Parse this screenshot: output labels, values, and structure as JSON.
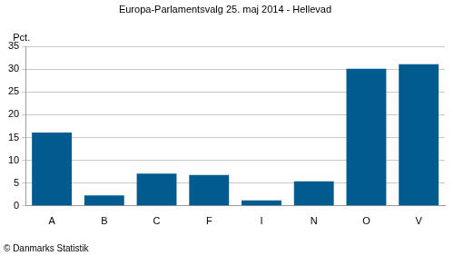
{
  "chart_data": {
    "type": "bar",
    "title": "Europa-Parlamentsvalg 25. maj 2014 - Hellevad",
    "ylabel": "Pct.",
    "note": "© Danmarks Statistik",
    "categories": [
      "A",
      "B",
      "C",
      "F",
      "I",
      "N",
      "O",
      "V"
    ],
    "values": [
      16.1,
      2.3,
      7.1,
      6.8,
      1.2,
      5.4,
      30.1,
      31.1
    ],
    "color": "#005b8f",
    "ylim": [
      0,
      35
    ],
    "yticks": [
      0,
      5,
      10,
      15,
      20,
      25,
      30,
      35
    ],
    "grid": true
  }
}
